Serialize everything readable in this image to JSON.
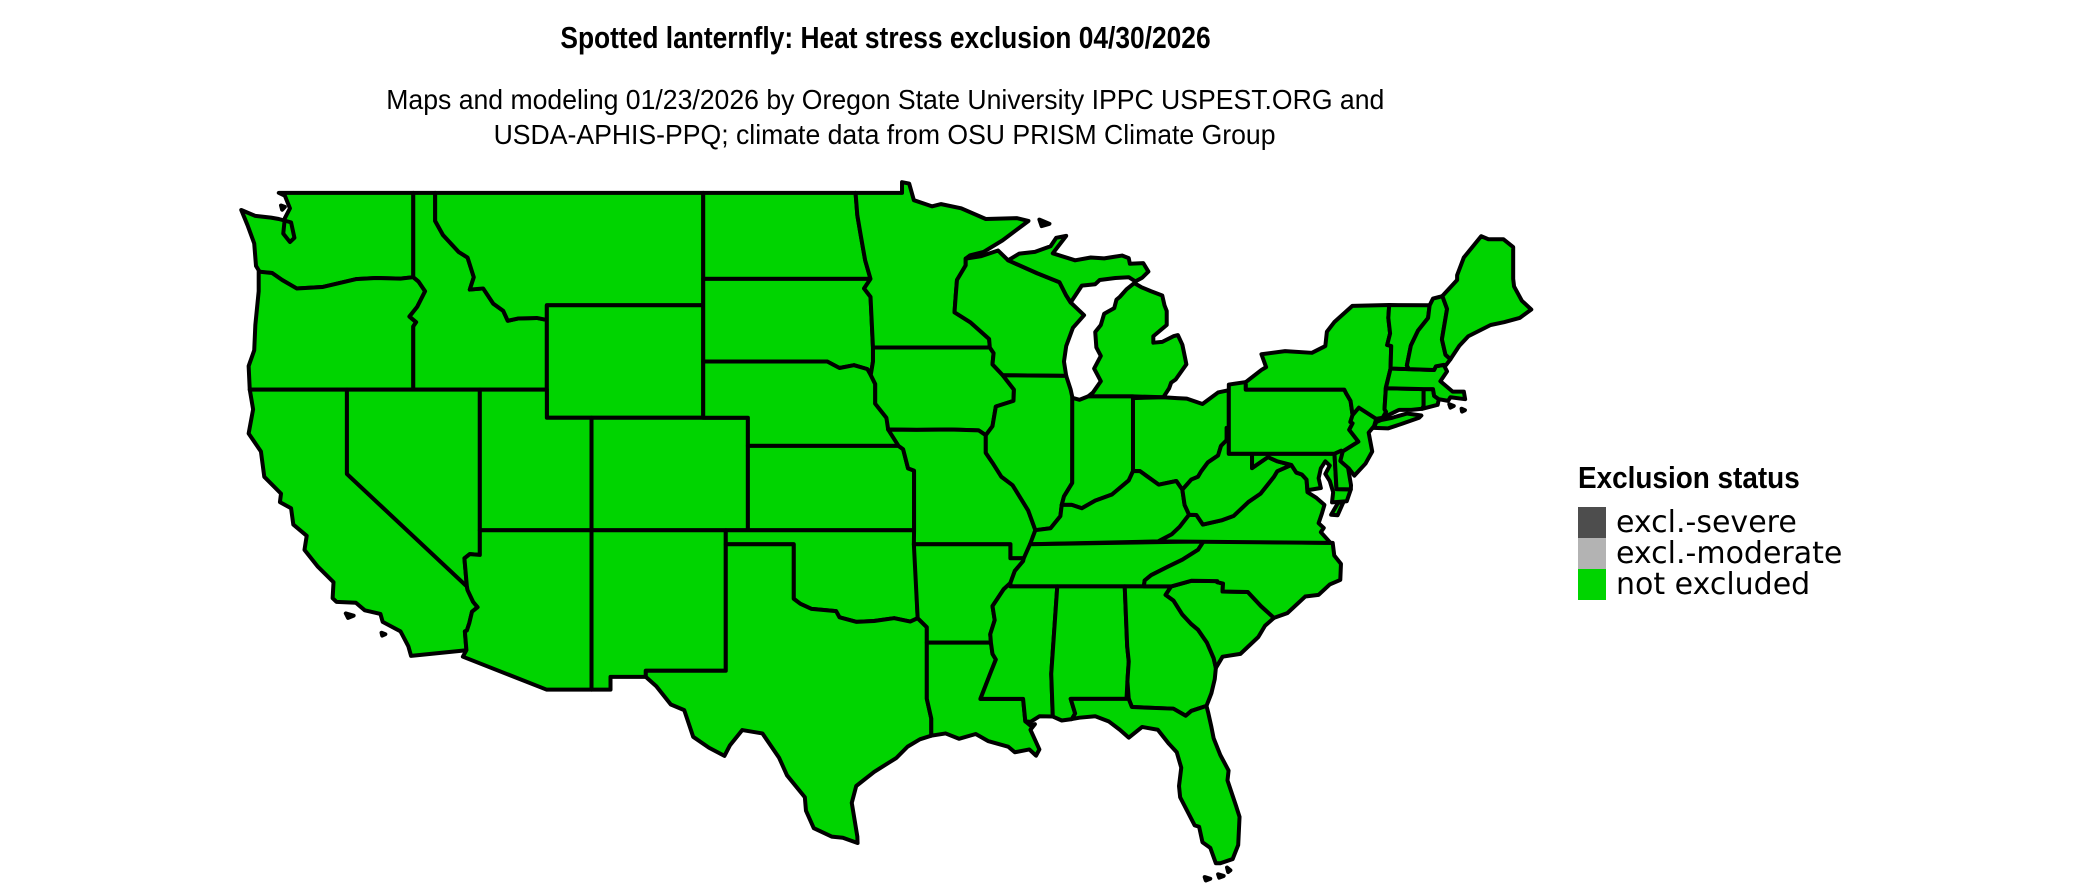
{
  "header": {
    "title": "Spotted lanternfly: Heat stress exclusion 04/30/2026",
    "subtitle_line1": "Maps and modeling 01/23/2026 by Oregon State University IPPC USPEST.ORG and",
    "subtitle_line2": "USDA-APHIS-PPQ; climate data from OSU PRISM Climate Group"
  },
  "legend": {
    "title": "Exclusion status",
    "items": [
      {
        "label": "excl.-severe",
        "color": "#4d4d4d"
      },
      {
        "label": "excl.-moderate",
        "color": "#b3b3b3"
      },
      {
        "label": "not excluded",
        "color": "#00d400"
      }
    ]
  },
  "map": {
    "region": "contiguous-united-states",
    "status_shown": "not excluded",
    "fill_color": "#00d400",
    "border_color": "#000000",
    "states": [
      {
        "id": "wa",
        "name": "Washington"
      },
      {
        "id": "or",
        "name": "Oregon"
      },
      {
        "id": "ca",
        "name": "California"
      },
      {
        "id": "id",
        "name": "Idaho"
      },
      {
        "id": "nv",
        "name": "Nevada"
      },
      {
        "id": "mt",
        "name": "Montana"
      },
      {
        "id": "wy",
        "name": "Wyoming"
      },
      {
        "id": "ut",
        "name": "Utah"
      },
      {
        "id": "co",
        "name": "Colorado"
      },
      {
        "id": "az",
        "name": "Arizona"
      },
      {
        "id": "nm",
        "name": "New Mexico"
      },
      {
        "id": "nd",
        "name": "North Dakota"
      },
      {
        "id": "sd",
        "name": "South Dakota"
      },
      {
        "id": "ne",
        "name": "Nebraska"
      },
      {
        "id": "ks",
        "name": "Kansas"
      },
      {
        "id": "ok",
        "name": "Oklahoma"
      },
      {
        "id": "tx",
        "name": "Texas"
      },
      {
        "id": "mn",
        "name": "Minnesota"
      },
      {
        "id": "ia",
        "name": "Iowa"
      },
      {
        "id": "mo",
        "name": "Missouri"
      },
      {
        "id": "ar",
        "name": "Arkansas"
      },
      {
        "id": "la",
        "name": "Louisiana"
      },
      {
        "id": "wi",
        "name": "Wisconsin"
      },
      {
        "id": "il",
        "name": "Illinois"
      },
      {
        "id": "mi",
        "name": "Michigan"
      },
      {
        "id": "in",
        "name": "Indiana"
      },
      {
        "id": "oh",
        "name": "Ohio"
      },
      {
        "id": "ky",
        "name": "Kentucky"
      },
      {
        "id": "tn",
        "name": "Tennessee"
      },
      {
        "id": "ms",
        "name": "Mississippi"
      },
      {
        "id": "al",
        "name": "Alabama"
      },
      {
        "id": "ga",
        "name": "Georgia"
      },
      {
        "id": "fl",
        "name": "Florida"
      },
      {
        "id": "sc",
        "name": "South Carolina"
      },
      {
        "id": "nc",
        "name": "North Carolina"
      },
      {
        "id": "va",
        "name": "Virginia"
      },
      {
        "id": "wv",
        "name": "West Virginia"
      },
      {
        "id": "md",
        "name": "Maryland"
      },
      {
        "id": "de",
        "name": "Delaware"
      },
      {
        "id": "pa",
        "name": "Pennsylvania"
      },
      {
        "id": "nj",
        "name": "New Jersey"
      },
      {
        "id": "ny",
        "name": "New York"
      },
      {
        "id": "ct",
        "name": "Connecticut"
      },
      {
        "id": "ri",
        "name": "Rhode Island"
      },
      {
        "id": "ma",
        "name": "Massachusetts"
      },
      {
        "id": "vt",
        "name": "Vermont"
      },
      {
        "id": "nh",
        "name": "New Hampshire"
      },
      {
        "id": "me",
        "name": "Maine"
      }
    ]
  }
}
